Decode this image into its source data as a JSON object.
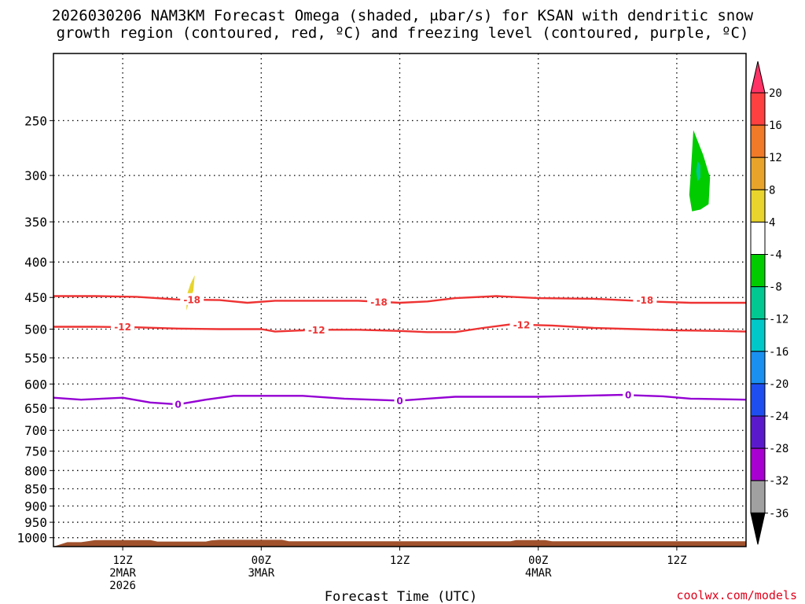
{
  "title": {
    "line1": "2026030206 NAM3KM Forecast Omega (shaded, μbar/s) for KSAN with dendritic snow",
    "line2": "growth region (contoured, red, ºC) and freezing level (contoured, purple, ºC)"
  },
  "credit": "coolwx.com/models",
  "chart_data": {
    "type": "heatmap",
    "title": "2026030206 NAM3KM Forecast Omega (shaded, μbar/s) for KSAN with dendritic snow growth region (contoured, red, ºC) and freezing level (contoured, purple, ºC)",
    "xlabel": "Forecast Time (UTC)",
    "ylabel": "",
    "x_axis": {
      "unit": "hours since 2026-03-02 06Z",
      "range": [
        1,
        51
      ],
      "ticks": [
        {
          "hour": 6,
          "lines": [
            "12Z",
            "2MAR",
            "2026"
          ]
        },
        {
          "hour": 16,
          "lines": [
            "00Z",
            "3MAR"
          ]
        },
        {
          "hour": 26,
          "lines": [
            "12Z"
          ]
        },
        {
          "hour": 36,
          "lines": [
            "00Z",
            "4MAR"
          ]
        },
        {
          "hour": 46,
          "lines": [
            "12Z"
          ]
        }
      ]
    },
    "y_axis": {
      "unit": "hPa",
      "scale": "log",
      "inverted": true,
      "range": [
        1030,
        200
      ],
      "ticks": [
        250,
        300,
        350,
        400,
        450,
        500,
        550,
        600,
        650,
        700,
        750,
        800,
        850,
        900,
        950,
        1000
      ],
      "grid": "dotted"
    },
    "colorbar": {
      "label_values": [
        20,
        16,
        12,
        8,
        4,
        -4,
        -8,
        -12,
        -16,
        -20,
        -24,
        -28,
        -32,
        -36
      ],
      "bins": [
        {
          "color": "#ff3366",
          "from": 20,
          "to": null,
          "arrow": true
        },
        {
          "color": "#ff4040",
          "from": 16,
          "to": 20
        },
        {
          "color": "#f07a28",
          "from": 12,
          "to": 16
        },
        {
          "color": "#e8a42a",
          "from": 8,
          "to": 12
        },
        {
          "color": "#e8d42c",
          "from": 4,
          "to": 8
        },
        {
          "color": "#ffffff",
          "from": -4,
          "to": 4
        },
        {
          "color": "#00cc00",
          "from": -8,
          "to": -4
        },
        {
          "color": "#00c890",
          "from": -12,
          "to": -8
        },
        {
          "color": "#00c8c8",
          "from": -16,
          "to": -12
        },
        {
          "color": "#1a90f0",
          "from": -20,
          "to": -16
        },
        {
          "color": "#1f4ef0",
          "from": -24,
          "to": -20
        },
        {
          "color": "#5a1acc",
          "from": -28,
          "to": -24
        },
        {
          "color": "#a800d0",
          "from": -32,
          "to": -28
        },
        {
          "color": "#a0a0a0",
          "from": -36,
          "to": -32
        },
        {
          "color": "#000000",
          "from": null,
          "to": -36,
          "arrow": true
        }
      ]
    },
    "omega_regions": [
      {
        "color": "#e8d42c",
        "range": "4 to 8",
        "points": [
          [
            10.6,
            470
          ],
          [
            10.8,
            455
          ],
          [
            11.1,
            440
          ],
          [
            11.2,
            418
          ],
          [
            10.9,
            430
          ],
          [
            10.6,
            448
          ]
        ]
      },
      {
        "color": "#00cc00",
        "range": "-8 to -4",
        "points": [
          [
            47.2,
            258
          ],
          [
            47.9,
            280
          ],
          [
            48.4,
            302
          ],
          [
            48.3,
            330
          ],
          [
            47.7,
            336
          ],
          [
            47.1,
            338
          ],
          [
            46.9,
            320
          ],
          [
            47.0,
            300
          ],
          [
            47.1,
            278
          ]
        ]
      },
      {
        "color": "#00c890",
        "range": "-12 to -8",
        "points": [
          [
            47.5,
            286
          ],
          [
            47.7,
            290
          ],
          [
            47.7,
            302
          ],
          [
            47.5,
            306
          ],
          [
            47.4,
            296
          ]
        ]
      }
    ],
    "series": [
      {
        "name": "-18",
        "color": "#ee3333",
        "x": [
          1,
          4,
          7,
          10,
          13,
          15,
          17,
          20,
          23,
          26,
          28,
          30,
          33,
          36,
          40,
          44,
          47,
          51
        ],
        "y": [
          448,
          448,
          449,
          453,
          454,
          458,
          455,
          455,
          455,
          458,
          456,
          451,
          448,
          451,
          452,
          456,
          458,
          458
        ],
        "labels": [
          {
            "x": 11,
            "y": 453,
            "text": "-18"
          },
          {
            "x": 24.5,
            "y": 457,
            "text": "-18"
          },
          {
            "x": 43.7,
            "y": 454,
            "text": "-18"
          }
        ]
      },
      {
        "name": "-12",
        "color": "#ee3333",
        "x": [
          1,
          4,
          7,
          10,
          13,
          16,
          17,
          20,
          23,
          26,
          28,
          30,
          32,
          34,
          37,
          40,
          43,
          46,
          49,
          51
        ],
        "y": [
          496,
          496,
          497,
          499,
          500,
          500,
          504,
          501,
          501,
          503,
          505,
          505,
          498,
          492,
          494,
          498,
          500,
          502,
          503,
          504
        ],
        "labels": [
          {
            "x": 6,
            "y": 496,
            "text": "-12"
          },
          {
            "x": 20,
            "y": 501,
            "text": "-12"
          },
          {
            "x": 34.8,
            "y": 493,
            "text": "-12"
          }
        ]
      },
      {
        "name": "0",
        "color": "#9400d3",
        "x": [
          1,
          3,
          6,
          8,
          10,
          12,
          14,
          16,
          19,
          22,
          24,
          26,
          28,
          30,
          33,
          36,
          39,
          42,
          45,
          47,
          51
        ],
        "y": [
          628,
          632,
          628,
          638,
          642,
          632,
          624,
          624,
          624,
          630,
          632,
          634,
          630,
          626,
          626,
          626,
          624,
          622,
          625,
          630,
          632
        ],
        "labels": [
          {
            "x": 10,
            "y": 642,
            "text": "0"
          },
          {
            "x": 26,
            "y": 634,
            "text": "0"
          },
          {
            "x": 42.5,
            "y": 622,
            "text": "0"
          }
        ]
      }
    ],
    "terrain": {
      "color": "#a0522d",
      "surface": [
        [
          1,
          1030
        ],
        [
          2,
          1015
        ],
        [
          3,
          1015
        ],
        [
          3.6,
          1011
        ],
        [
          4,
          1008
        ],
        [
          8,
          1008
        ],
        [
          8.5,
          1013
        ],
        [
          12,
          1013
        ],
        [
          12.4,
          1009
        ],
        [
          13,
          1007
        ],
        [
          17.5,
          1007
        ],
        [
          18,
          1012
        ],
        [
          34,
          1012
        ],
        [
          34.4,
          1008
        ],
        [
          36.5,
          1008
        ],
        [
          37,
          1012
        ],
        [
          51,
          1012
        ],
        [
          51,
          1030
        ]
      ]
    }
  }
}
